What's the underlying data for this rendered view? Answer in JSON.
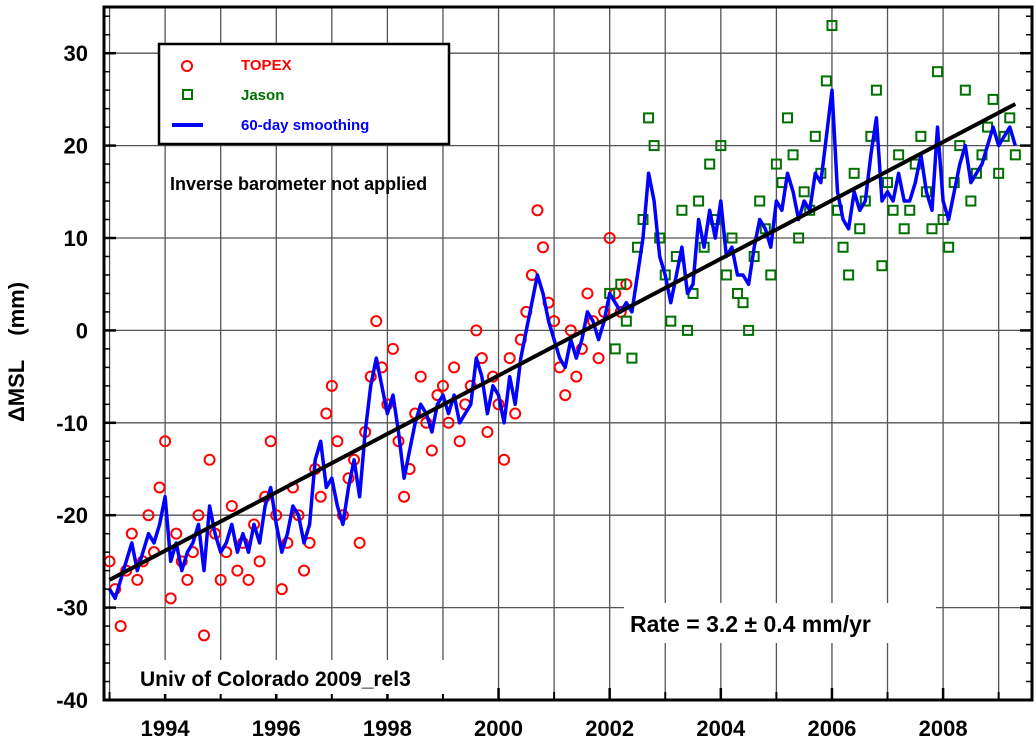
{
  "chart_data": {
    "type": "scatter",
    "ylabel": "ΔMSL    (mm)",
    "xlim": [
      1992.9,
      2009.6
    ],
    "ylim": [
      -40,
      35
    ],
    "x_ticks": [
      1994,
      1996,
      1998,
      2000,
      2002,
      2004,
      2006,
      2008
    ],
    "x_tick_labels": [
      "1994",
      "1996",
      "1998",
      "2000",
      "2002",
      "2004",
      "2006",
      "2008"
    ],
    "y_ticks": [
      -40,
      -30,
      -20,
      -10,
      0,
      10,
      20,
      30
    ],
    "y_tick_labels": [
      "-40",
      "-30",
      "-20",
      "-10",
      "0",
      "10",
      "20",
      "30"
    ],
    "grid": true,
    "legend_position": "top-left",
    "legend": {
      "topex": "TOPEX",
      "jason": "Jason",
      "smoothing": "60-day smoothing"
    },
    "annotations": {
      "ib": "Inverse barometer not applied",
      "rate": "Rate = 3.2 ± 0.4 mm/yr",
      "source": "Univ of Colorado 2009_rel3"
    },
    "colors": {
      "topex": "#ff0000",
      "jason": "#007000",
      "smoothing": "#0000ff",
      "trend": "#000000"
    },
    "trend": {
      "x": [
        1993.0,
        2009.3
      ],
      "y": [
        -27.0,
        24.5
      ]
    },
    "series": [
      {
        "name": "TOPEX",
        "marker": "circle",
        "x": [
          1993.0,
          1993.1,
          1993.2,
          1993.3,
          1993.4,
          1993.5,
          1993.6,
          1993.7,
          1993.8,
          1993.9,
          1994.0,
          1994.1,
          1994.2,
          1994.3,
          1994.4,
          1994.5,
          1994.6,
          1994.7,
          1994.8,
          1994.9,
          1995.0,
          1995.1,
          1995.2,
          1995.3,
          1995.4,
          1995.5,
          1995.6,
          1995.7,
          1995.8,
          1995.9,
          1996.0,
          1996.1,
          1996.2,
          1996.3,
          1996.4,
          1996.5,
          1996.6,
          1996.7,
          1996.8,
          1996.9,
          1997.0,
          1997.1,
          1997.2,
          1997.3,
          1997.4,
          1997.5,
          1997.6,
          1997.7,
          1997.8,
          1997.9,
          1998.0,
          1998.1,
          1998.2,
          1998.3,
          1998.4,
          1998.5,
          1998.6,
          1998.7,
          1998.8,
          1998.9,
          1999.0,
          1999.1,
          1999.2,
          1999.3,
          1999.4,
          1999.5,
          1999.6,
          1999.7,
          1999.8,
          1999.9,
          2000.0,
          2000.1,
          2000.2,
          2000.3,
          2000.4,
          2000.5,
          2000.6,
          2000.7,
          2000.8,
          2000.9,
          2001.0,
          2001.1,
          2001.2,
          2001.3,
          2001.4,
          2001.5,
          2001.6,
          2001.7,
          2001.8,
          2001.9,
          2002.0,
          2002.1,
          2002.2,
          2002.3
        ],
        "y": [
          -25,
          -28,
          -32,
          -26,
          -22,
          -27,
          -25,
          -20,
          -24,
          -17,
          -12,
          -29,
          -22,
          -25,
          -27,
          -24,
          -20,
          -33,
          -14,
          -22,
          -27,
          -24,
          -19,
          -26,
          -23,
          -27,
          -21,
          -25,
          -18,
          -12,
          -20,
          -28,
          -23,
          -17,
          -20,
          -26,
          -23,
          -15,
          -18,
          -9,
          -6,
          -12,
          -20,
          -16,
          -14,
          -23,
          -11,
          -5,
          1,
          -4,
          -8,
          -2,
          -12,
          -18,
          -15,
          -9,
          -5,
          -10,
          -13,
          -7,
          -6,
          -10,
          -4,
          -12,
          -8,
          -6,
          0,
          -3,
          -11,
          -5,
          -8,
          -14,
          -3,
          -9,
          -1,
          2,
          6,
          13,
          9,
          3,
          1,
          -4,
          -7,
          0,
          -5,
          -2,
          4,
          1,
          -3,
          2,
          10,
          4,
          2,
          5
        ]
      },
      {
        "name": "Jason",
        "marker": "square",
        "x": [
          2002.0,
          2002.1,
          2002.2,
          2002.3,
          2002.4,
          2002.5,
          2002.6,
          2002.7,
          2002.8,
          2002.9,
          2003.0,
          2003.1,
          2003.2,
          2003.3,
          2003.4,
          2003.5,
          2003.6,
          2003.7,
          2003.8,
          2003.9,
          2004.0,
          2004.1,
          2004.2,
          2004.3,
          2004.4,
          2004.5,
          2004.6,
          2004.7,
          2004.8,
          2004.9,
          2005.0,
          2005.1,
          2005.2,
          2005.3,
          2005.4,
          2005.5,
          2005.6,
          2005.7,
          2005.8,
          2005.9,
          2006.0,
          2006.1,
          2006.2,
          2006.3,
          2006.4,
          2006.5,
          2006.6,
          2006.7,
          2006.8,
          2006.9,
          2007.0,
          2007.1,
          2007.2,
          2007.3,
          2007.4,
          2007.5,
          2007.6,
          2007.7,
          2007.8,
          2007.9,
          2008.0,
          2008.1,
          2008.2,
          2008.3,
          2008.4,
          2008.5,
          2008.6,
          2008.7,
          2008.8,
          2008.9,
          2009.0,
          2009.1,
          2009.2,
          2009.3
        ],
        "y": [
          4,
          -2,
          5,
          1,
          -3,
          9,
          12,
          23,
          20,
          10,
          6,
          1,
          8,
          13,
          0,
          4,
          14,
          9,
          18,
          12,
          20,
          6,
          10,
          4,
          3,
          0,
          8,
          14,
          11,
          6,
          18,
          16,
          23,
          19,
          10,
          15,
          13,
          21,
          17,
          27,
          33,
          13,
          9,
          6,
          17,
          11,
          14,
          21,
          26,
          7,
          16,
          13,
          19,
          11,
          13,
          18,
          21,
          15,
          11,
          28,
          12,
          9,
          16,
          20,
          26,
          14,
          17,
          19,
          22,
          25,
          17,
          21,
          23,
          19
        ]
      },
      {
        "name": "60-day smoothing",
        "marker": "line",
        "x": [
          1993.0,
          1993.1,
          1993.2,
          1993.3,
          1993.4,
          1993.5,
          1993.6,
          1993.7,
          1993.8,
          1993.9,
          1994.0,
          1994.1,
          1994.2,
          1994.3,
          1994.4,
          1994.5,
          1994.6,
          1994.7,
          1994.8,
          1994.9,
          1995.0,
          1995.1,
          1995.2,
          1995.3,
          1995.4,
          1995.5,
          1995.6,
          1995.7,
          1995.8,
          1995.9,
          1996.0,
          1996.1,
          1996.2,
          1996.3,
          1996.4,
          1996.5,
          1996.6,
          1996.7,
          1996.8,
          1996.9,
          1997.0,
          1997.1,
          1997.2,
          1997.3,
          1997.4,
          1997.5,
          1997.6,
          1997.7,
          1997.8,
          1997.9,
          1998.0,
          1998.1,
          1998.2,
          1998.3,
          1998.4,
          1998.5,
          1998.6,
          1998.7,
          1998.8,
          1998.9,
          1999.0,
          1999.1,
          1999.2,
          1999.3,
          1999.4,
          1999.5,
          1999.6,
          1999.7,
          1999.8,
          1999.9,
          2000.0,
          2000.1,
          2000.2,
          2000.3,
          2000.4,
          2000.5,
          2000.6,
          2000.7,
          2000.8,
          2000.9,
          2001.0,
          2001.1,
          2001.2,
          2001.3,
          2001.4,
          2001.5,
          2001.6,
          2001.7,
          2001.8,
          2001.9,
          2002.0,
          2002.1,
          2002.2,
          2002.3,
          2002.4,
          2002.5,
          2002.6,
          2002.7,
          2002.8,
          2002.9,
          2003.0,
          2003.1,
          2003.2,
          2003.3,
          2003.4,
          2003.5,
          2003.6,
          2003.7,
          2003.8,
          2003.9,
          2004.0,
          2004.1,
          2004.2,
          2004.3,
          2004.4,
          2004.5,
          2004.6,
          2004.7,
          2004.8,
          2004.9,
          2005.0,
          2005.1,
          2005.2,
          2005.3,
          2005.4,
          2005.5,
          2005.6,
          2005.7,
          2005.8,
          2005.9,
          2006.0,
          2006.1,
          2006.2,
          2006.3,
          2006.4,
          2006.5,
          2006.6,
          2006.7,
          2006.8,
          2006.9,
          2007.0,
          2007.1,
          2007.2,
          2007.3,
          2007.4,
          2007.5,
          2007.6,
          2007.7,
          2007.8,
          2007.9,
          2008.0,
          2008.1,
          2008.2,
          2008.3,
          2008.4,
          2008.5,
          2008.6,
          2008.7,
          2008.8,
          2008.9,
          2009.0,
          2009.1,
          2009.2,
          2009.3
        ],
        "y": [
          -28,
          -29,
          -27,
          -25,
          -23,
          -26,
          -24,
          -22,
          -23,
          -21,
          -18,
          -25,
          -23,
          -26,
          -24,
          -23,
          -21,
          -26,
          -19,
          -22,
          -24,
          -23,
          -21,
          -24,
          -22,
          -24,
          -21,
          -23,
          -19,
          -17,
          -21,
          -24,
          -22,
          -19,
          -20,
          -23,
          -21,
          -14,
          -12,
          -17,
          -16,
          -19,
          -21,
          -17,
          -14,
          -18,
          -11,
          -6,
          -3,
          -6,
          -9,
          -7,
          -11,
          -16,
          -13,
          -10,
          -8,
          -9,
          -11,
          -8,
          -7,
          -9,
          -7,
          -10,
          -9,
          -8,
          -3,
          -5,
          -9,
          -6,
          -7,
          -10,
          -5,
          -8,
          -3,
          0,
          3,
          6,
          4,
          1,
          -1,
          -3,
          -4,
          -1,
          -3,
          -1,
          2,
          1,
          -1,
          1,
          4,
          3,
          2,
          3,
          2,
          6,
          10,
          17,
          14,
          8,
          6,
          3,
          6,
          9,
          4,
          5,
          12,
          9,
          13,
          10,
          14,
          8,
          9,
          6,
          6,
          5,
          9,
          12,
          11,
          9,
          14,
          13,
          17,
          15,
          12,
          14,
          13,
          17,
          16,
          21,
          26,
          15,
          12,
          11,
          15,
          13,
          14,
          19,
          23,
          14,
          15,
          14,
          17,
          14,
          14,
          16,
          19,
          15,
          13,
          22,
          14,
          12,
          15,
          18,
          20,
          16,
          17,
          18,
          20,
          22,
          20,
          21,
          22,
          20
        ]
      }
    ]
  }
}
